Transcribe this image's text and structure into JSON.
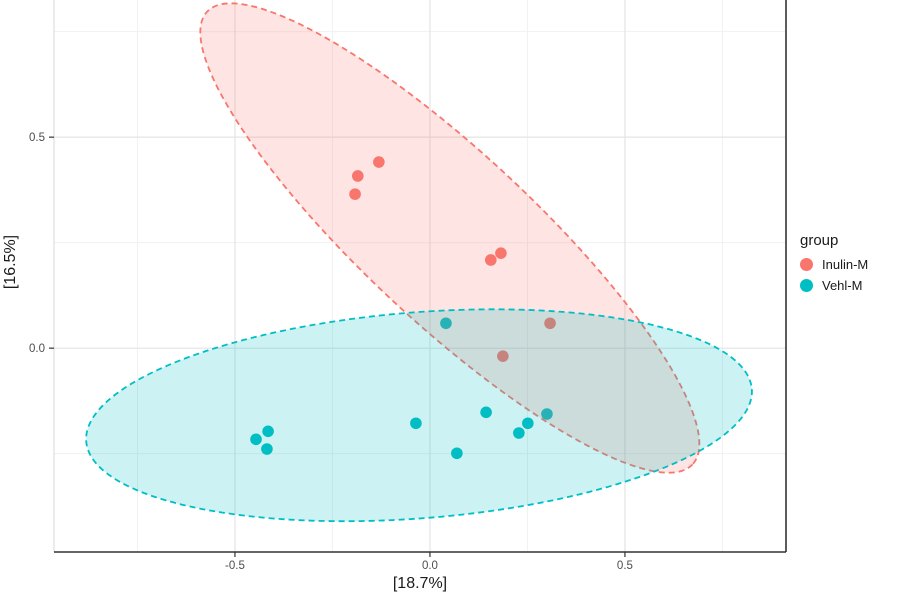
{
  "chart_data": {
    "type": "scatter",
    "title": "",
    "xlabel": "[18.7%]",
    "ylabel": "[16.5%]",
    "xlim": [
      -0.964,
      0.913
    ],
    "ylim": [
      -0.483,
      0.825
    ],
    "x_ticks": [
      -0.5,
      0.0,
      0.5
    ],
    "x_tick_labels": [
      "-0.5",
      "0.0",
      "0.5"
    ],
    "y_ticks": [
      0.0,
      0.5
    ],
    "y_tick_labels": [
      "0.0",
      "0.5"
    ],
    "x_minor_ticks": [
      -0.75,
      -0.25,
      0.25,
      0.75
    ],
    "y_minor_ticks": [
      -0.25,
      0.25,
      0.75
    ],
    "grid": true,
    "legend": {
      "title": "group",
      "position": "right"
    },
    "point_radius_px": 5.8,
    "series": [
      {
        "name": "Inulin-M",
        "color": "#F8766D",
        "fill_opacity": 0.2,
        "points": [
          [
            -0.185,
            0.408
          ],
          [
            -0.131,
            0.441
          ],
          [
            -0.192,
            0.365
          ],
          [
            0.156,
            0.209
          ],
          [
            0.182,
            0.225
          ],
          [
            0.308,
            0.059
          ],
          [
            0.187,
            -0.019
          ]
        ],
        "ellipse": {
          "cx": 0.051,
          "cy": 0.261,
          "rx": 0.851,
          "ry": 0.201,
          "angle_deg": 43
        }
      },
      {
        "name": "Vehl-M",
        "color": "#00BFC4",
        "fill_opacity": 0.2,
        "points": [
          [
            0.041,
            0.059
          ],
          [
            0.144,
            -0.152
          ],
          [
            -0.036,
            -0.178
          ],
          [
            0.251,
            -0.178
          ],
          [
            0.3,
            -0.156
          ],
          [
            0.228,
            -0.201
          ],
          [
            0.069,
            -0.249
          ],
          [
            -0.446,
            -0.216
          ],
          [
            -0.415,
            -0.197
          ],
          [
            -0.418,
            -0.239
          ]
        ],
        "ellipse": {
          "cx": -0.028,
          "cy": -0.159,
          "rx": 0.856,
          "ry": 0.244,
          "angle_deg": -4.5
        }
      }
    ],
    "colors": {
      "grid_major": "#e4e4e4",
      "grid_minor": "#f1f1f1",
      "axis_line": "#333333",
      "panel_left_edge": "#dedede",
      "tick_text": "#4d4d4d",
      "title_text": "#1a1a1a"
    }
  }
}
